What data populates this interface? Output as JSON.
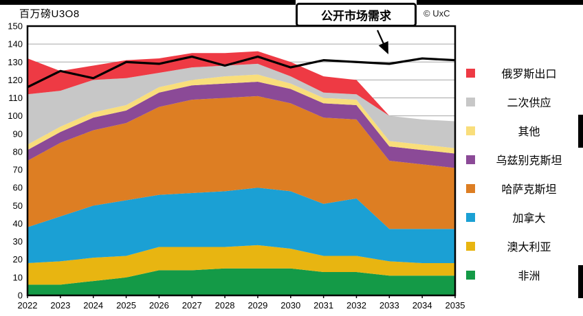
{
  "title": "百万磅U3O8",
  "copyright": "© UxC",
  "annotation": {
    "label": "公开市场需求"
  },
  "chart_data": {
    "type": "area",
    "stacked": true,
    "title": "百万磅U3O8",
    "x_label": "",
    "y_label": "百万磅U3O8",
    "x": [
      2022,
      2023,
      2024,
      2025,
      2026,
      2027,
      2028,
      2029,
      2030,
      2031,
      2032,
      2033,
      2034,
      2035
    ],
    "ylim": [
      0,
      150
    ],
    "y_tick_step": 10,
    "grid": true,
    "legend_position": "right",
    "series": [
      {
        "id": "africa",
        "name": "非洲",
        "color": "#149a47",
        "values": [
          6,
          6,
          8,
          10,
          14,
          14,
          15,
          15,
          15,
          13,
          13,
          11,
          11,
          11
        ]
      },
      {
        "id": "australia",
        "name": "澳大利亚",
        "color": "#e8b511",
        "values": [
          12,
          13,
          13,
          12,
          13,
          13,
          12,
          13,
          11,
          9,
          9,
          8,
          7,
          7
        ]
      },
      {
        "id": "canada",
        "name": "加拿大",
        "color": "#1ba0d4",
        "values": [
          20,
          25,
          29,
          31,
          29,
          30,
          31,
          32,
          32,
          29,
          32,
          18,
          19,
          19
        ]
      },
      {
        "id": "kazakhstan",
        "name": "哈萨克斯坦",
        "color": "#dd7e23",
        "values": [
          37,
          41,
          42,
          43,
          49,
          52,
          52,
          51,
          49,
          48,
          44,
          38,
          36,
          34
        ]
      },
      {
        "id": "uzbekistan",
        "name": "乌兹别克斯坦",
        "color": "#8b4a97",
        "values": [
          6,
          6,
          7,
          7,
          8,
          8,
          8,
          8,
          8,
          8,
          8,
          8,
          8,
          8
        ]
      },
      {
        "id": "other",
        "name": "其他",
        "color": "#f9de7b",
        "values": [
          3,
          3,
          3,
          3,
          3,
          3,
          4,
          4,
          3,
          3,
          3,
          3,
          3,
          3
        ]
      },
      {
        "id": "secondary",
        "name": "二次供应",
        "color": "#c7c7c7",
        "values": [
          28,
          20,
          18,
          15,
          8,
          7,
          6,
          6,
          4,
          3,
          3,
          14,
          14,
          15
        ]
      },
      {
        "id": "russia",
        "name": "俄罗斯出口",
        "color": "#ee3a44",
        "values": [
          20,
          11,
          8,
          10,
          8,
          8,
          7,
          7,
          8,
          9,
          8,
          0,
          0,
          0
        ]
      }
    ],
    "line_series": {
      "id": "demand",
      "name": "公开市场需求",
      "color": "#000000",
      "values": [
        116,
        125,
        121,
        130,
        129,
        133,
        128,
        133,
        127,
        131,
        130,
        129,
        132,
        131
      ]
    }
  }
}
